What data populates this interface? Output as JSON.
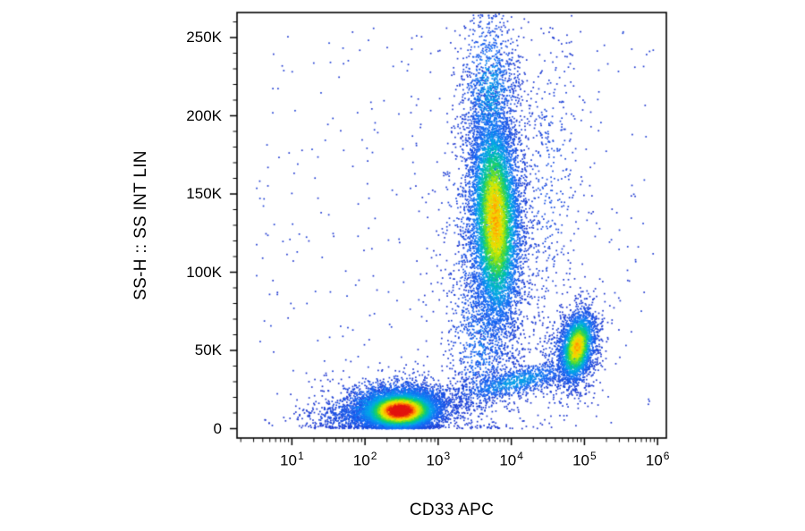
{
  "chart_data": {
    "type": "scatter",
    "subtype": "flow-cytometry-pseudocolor-density",
    "title": "",
    "xlabel": "CD33 APC",
    "ylabel": "SS-H :: SS INT LIN",
    "x_scale": "log10",
    "x_range_log10": [
      0.25,
      6.12
    ],
    "y_scale": "linear",
    "y_range": [
      -6000,
      266000
    ],
    "grid": false,
    "legend": "none",
    "x_ticks": [
      {
        "log10": 1,
        "base": "10",
        "exp": "1"
      },
      {
        "log10": 2,
        "base": "10",
        "exp": "2"
      },
      {
        "log10": 3,
        "base": "10",
        "exp": "3"
      },
      {
        "log10": 4,
        "base": "10",
        "exp": "4"
      },
      {
        "log10": 5,
        "base": "10",
        "exp": "5"
      },
      {
        "log10": 6,
        "base": "10",
        "exp": "6"
      }
    ],
    "y_ticks": [
      {
        "value": 0,
        "label": "0"
      },
      {
        "value": 50000,
        "label": "50K"
      },
      {
        "value": 100000,
        "label": "100K"
      },
      {
        "value": 150000,
        "label": "150K"
      },
      {
        "value": 200000,
        "label": "200K"
      },
      {
        "value": 250000,
        "label": "250K"
      }
    ],
    "y_minor_step": 10000,
    "x_minor": "log-decade-subdivisions",
    "colormap_stops": [
      {
        "t": 0.0,
        "color": [
          30,
          52,
          205
        ]
      },
      {
        "t": 0.18,
        "color": [
          22,
          105,
          245
        ]
      },
      {
        "t": 0.34,
        "color": [
          0,
          170,
          230
        ]
      },
      {
        "t": 0.48,
        "color": [
          0,
          200,
          140
        ]
      },
      {
        "t": 0.6,
        "color": [
          95,
          220,
          40
        ]
      },
      {
        "t": 0.72,
        "color": [
          220,
          235,
          0
        ]
      },
      {
        "t": 0.82,
        "color": [
          255,
          200,
          0
        ]
      },
      {
        "t": 0.9,
        "color": [
          255,
          125,
          0
        ]
      },
      {
        "t": 1.0,
        "color": [
          226,
          20,
          15
        ]
      }
    ],
    "populations": [
      {
        "name": "low-ssc-main",
        "n": 6500,
        "cx_log10": 2.48,
        "cy": 11500,
        "sx_log10": 0.27,
        "sy": 6200,
        "rho": 0.05,
        "heat": 1.03
      },
      {
        "name": "low-ssc-halo",
        "n": 2000,
        "cx_log10": 2.42,
        "cy": 13500,
        "sx_log10": 0.46,
        "sy": 9500,
        "rho": 0.1,
        "heat": 0.42
      },
      {
        "name": "low-ssc-tail",
        "n": 450,
        "cx_log10": 1.95,
        "cy": 9000,
        "sx_log10": 0.4,
        "sy": 5500,
        "rho": 0.2,
        "heat": 0.15
      },
      {
        "name": "high-ssc-main",
        "n": 7000,
        "cx_log10": 3.78,
        "cy": 134000,
        "sx_log10": 0.175,
        "sy": 36000,
        "rho": -0.12,
        "heat": 0.78
      },
      {
        "name": "high-ssc-top",
        "n": 1000,
        "cx_log10": 3.71,
        "cy": 215000,
        "sx_log10": 0.2,
        "sy": 28000,
        "rho": 0.0,
        "heat": 0.3
      },
      {
        "name": "high-ssc-halo",
        "n": 1300,
        "cx_log10": 3.74,
        "cy": 128000,
        "sx_log10": 0.34,
        "sy": 58000,
        "rho": 0.0,
        "heat": 0.22
      },
      {
        "name": "right-trail",
        "n": 380,
        "cx_log10": 4.5,
        "cy": 155000,
        "sx_log10": 0.24,
        "sy": 52000,
        "rho": 0.25,
        "heat": 0.1
      },
      {
        "name": "mid-ssc-main",
        "n": 2400,
        "cx_log10": 4.9,
        "cy": 52000,
        "sx_log10": 0.125,
        "sy": 11500,
        "rho": 0.3,
        "heat": 0.78
      },
      {
        "name": "mid-ssc-halo",
        "n": 550,
        "cx_log10": 4.85,
        "cy": 50000,
        "sx_log10": 0.23,
        "sy": 18000,
        "rho": 0.3,
        "heat": 0.18
      },
      {
        "name": "bridge-diagonal",
        "n": 950,
        "cx_log10": 4.05,
        "cy": 30000,
        "sx_log10": 0.45,
        "sy": 7000,
        "rho": 0.7,
        "heat": 0.3
      },
      {
        "name": "bridge-vertical",
        "n": 700,
        "cx_log10": 3.6,
        "cy": 57000,
        "sx_log10": 0.23,
        "sy": 30000,
        "rho": 0.0,
        "heat": 0.22
      },
      {
        "name": "background-noise",
        "n": 420,
        "uniform": true,
        "x_log10_range": [
          0.45,
          5.95
        ],
        "y_range": [
          0,
          256000
        ],
        "heat": 0.04
      }
    ]
  }
}
